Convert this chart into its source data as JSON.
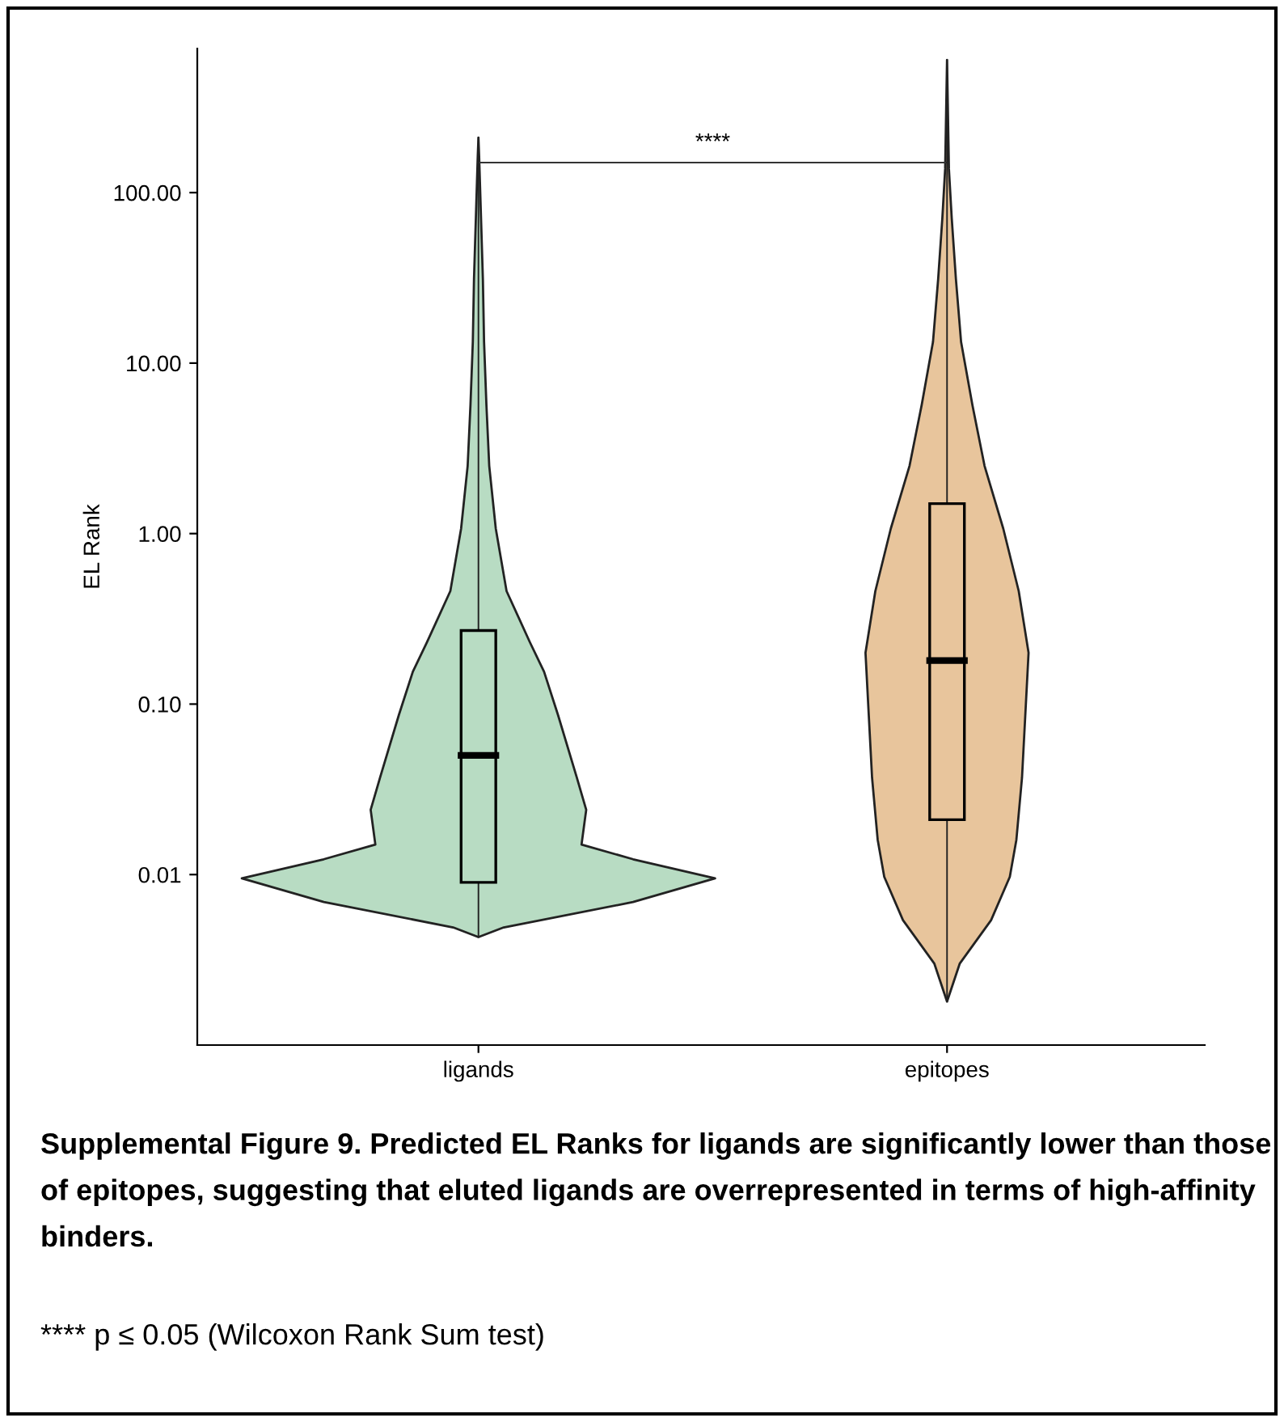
{
  "chart_data": {
    "type": "box",
    "ylabel": "EL Rank",
    "log": "y",
    "grid": false,
    "categories": [
      "ligands",
      "epitopes"
    ],
    "ylim": [
      0.001,
      700
    ],
    "yticks": [
      {
        "value": 0.01,
        "label": "0.01"
      },
      {
        "value": 0.1,
        "label": "0.10"
      },
      {
        "value": 1,
        "label": "1.00"
      },
      {
        "value": 10,
        "label": "10.00"
      },
      {
        "value": 100,
        "label": "100.00"
      }
    ],
    "series": [
      {
        "color": "#b8dcc3",
        "boxes": [
          {
            "low": 0.0043,
            "q1": 0.009,
            "median": 0.05,
            "q3": 0.27,
            "high": 210
          },
          null
        ]
      },
      {
        "color": "#e8c59c",
        "boxes": [
          null,
          {
            "low": 0.0018,
            "q1": 0.021,
            "median": 0.18,
            "q3": 1.5,
            "high": 600
          }
        ]
      }
    ],
    "ref_lines": [
      {
        "axis": "y",
        "value": 150,
        "label": "****",
        "color": "#333333"
      }
    ],
    "annotations": [
      "Supplemental Figure 9. Predicted EL Ranks for ligands are significantly lower than those of epitopes, suggesting that eluted ligands are overrepresented in terms of high-affinity binders.",
      "**** p ≤ 0.05 (Wilcoxon Rank Sum test)"
    ]
  }
}
